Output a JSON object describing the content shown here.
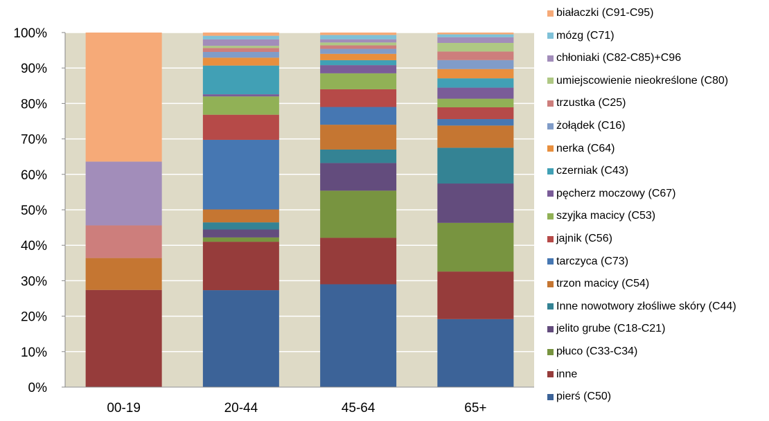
{
  "chart_data": {
    "type": "bar",
    "stacked": true,
    "percent": true,
    "title": "",
    "xlabel": "",
    "ylabel": "",
    "ylim": [
      0,
      100
    ],
    "yticks": [
      "0%",
      "10%",
      "20%",
      "30%",
      "40%",
      "50%",
      "60%",
      "70%",
      "80%",
      "90%",
      "100%"
    ],
    "categories": [
      "00-19",
      "20-44",
      "45-64",
      "65+"
    ],
    "plot_background": "#dedac6",
    "legend_position": "right",
    "series": [
      {
        "name": "pierś (C50)",
        "color": "#3c6398",
        "values": [
          0,
          27.0,
          29.0,
          19.0
        ]
      },
      {
        "name": "inne",
        "color": "#963c3b",
        "values": [
          27.4,
          13.5,
          13.1,
          13.3
        ]
      },
      {
        "name": "płuco (C33-C34)",
        "color": "#789440",
        "values": [
          0,
          1.2,
          13.3,
          13.6
        ]
      },
      {
        "name": "jelito grube (C18-C21)",
        "color": "#634c7d",
        "values": [
          0,
          2.2,
          7.8,
          11.0
        ]
      },
      {
        "name": "Inne nowotwory złośliwe skóry (C44)",
        "color": "#348394",
        "values": [
          0,
          2.0,
          3.8,
          10.0
        ]
      },
      {
        "name": "trzon macicy (C54)",
        "color": "#c57632",
        "values": [
          9.0,
          3.6,
          7.0,
          6.2
        ]
      },
      {
        "name": "tarczyca (C73)",
        "color": "#4677b2",
        "values": [
          0,
          19.4,
          5.0,
          1.8
        ]
      },
      {
        "name": "jajnik (C56)",
        "color": "#b64a48",
        "values": [
          0,
          7.0,
          5.0,
          3.3
        ]
      },
      {
        "name": "szyjka macicy (C53)",
        "color": "#91b156",
        "values": [
          0,
          5.1,
          4.5,
          2.4
        ]
      },
      {
        "name": "pęcherz moczowy (C67)",
        "color": "#7a5c98",
        "values": [
          0,
          0.6,
          2.3,
          3.1
        ]
      },
      {
        "name": "czerniak (C43)",
        "color": "#41a0b5",
        "values": [
          0,
          8.0,
          1.4,
          2.6
        ]
      },
      {
        "name": "nerka (C64)",
        "color": "#e88f3e",
        "values": [
          0,
          2.2,
          1.8,
          2.6
        ]
      },
      {
        "name": "żołądek (C16)",
        "color": "#809cc8",
        "values": [
          0,
          1.6,
          1.4,
          2.5
        ]
      },
      {
        "name": "trzustka (C25)",
        "color": "#cd7e7c",
        "values": [
          9.2,
          1.1,
          1.0,
          2.4
        ]
      },
      {
        "name": "umiejscowienie nieokreślone (C80)",
        "color": "#afc884",
        "values": [
          0,
          0.6,
          0.8,
          2.4
        ]
      },
      {
        "name": "chłoniaki (C82-C85)+C96",
        "color": "#a28dba",
        "values": [
          18.0,
          1.8,
          0.9,
          1.6
        ]
      },
      {
        "name": "mózg (C71)",
        "color": "#7fc1d8",
        "values": [
          0,
          1.0,
          1.2,
          0.8
        ]
      },
      {
        "name": "białaczki (C91-C95)",
        "color": "#f6aa78",
        "values": [
          36.4,
          0.9,
          0.7,
          0.5
        ]
      }
    ]
  }
}
